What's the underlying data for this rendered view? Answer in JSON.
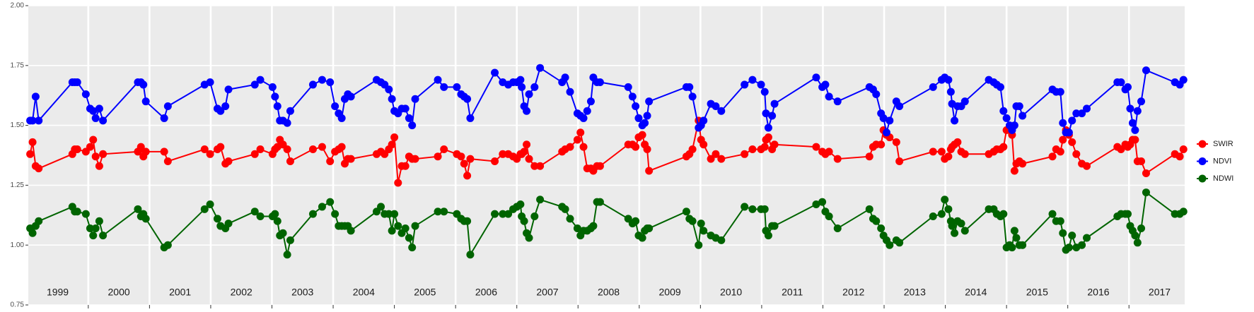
{
  "chart_data": {
    "type": "line",
    "xlim": [
      1999.02,
      2017.91
    ],
    "xticks": [
      2000,
      2001,
      2002,
      2003,
      2004,
      2005,
      2006,
      2007,
      2008,
      2009,
      2010,
      2011,
      2012,
      2013,
      2014,
      2015,
      2016,
      2017
    ],
    "ylim": [
      0.75,
      2
    ],
    "yticks": [
      {
        "value": 0.75,
        "label": "0.75"
      },
      {
        "value": 1,
        "label": "1.00"
      },
      {
        "value": 1.25,
        "label": "1.25"
      },
      {
        "value": 1.5,
        "label": "1.50"
      },
      {
        "value": 1.75,
        "label": "1.75"
      },
      {
        "value": 2,
        "label": "2.00"
      }
    ],
    "grid": true,
    "legend": "right",
    "annotations": [
      {
        "text": "1999",
        "x": 1999.5,
        "y": 0.8
      },
      {
        "text": "2000",
        "x": 2000.5,
        "y": 0.8
      },
      {
        "text": "2001",
        "x": 2001.5,
        "y": 0.8
      },
      {
        "text": "2002",
        "x": 2002.5,
        "y": 0.8
      },
      {
        "text": "2003",
        "x": 2003.5,
        "y": 0.8
      },
      {
        "text": "2004",
        "x": 2004.5,
        "y": 0.8
      },
      {
        "text": "2005",
        "x": 2005.5,
        "y": 0.8
      },
      {
        "text": "2006",
        "x": 2006.5,
        "y": 0.8
      },
      {
        "text": "2007",
        "x": 2007.5,
        "y": 0.8
      },
      {
        "text": "2008",
        "x": 2008.5,
        "y": 0.8
      },
      {
        "text": "2009",
        "x": 2009.5,
        "y": 0.8
      },
      {
        "text": "2010",
        "x": 2010.5,
        "y": 0.8
      },
      {
        "text": "2011",
        "x": 2011.5,
        "y": 0.8
      },
      {
        "text": "2012",
        "x": 2012.5,
        "y": 0.8
      },
      {
        "text": "2013",
        "x": 2013.5,
        "y": 0.8
      },
      {
        "text": "2014",
        "x": 2014.5,
        "y": 0.8
      },
      {
        "text": "2015",
        "x": 2015.5,
        "y": 0.8
      },
      {
        "text": "2016",
        "x": 2016.5,
        "y": 0.8
      },
      {
        "text": "2017",
        "x": 2017.5,
        "y": 0.8
      }
    ],
    "x": [
      1999.05,
      1999.09,
      1999.14,
      1999.19,
      1999.74,
      1999.78,
      1999.82,
      1999.96,
      2000.03,
      2000.08,
      2000.12,
      2000.18,
      2000.24,
      2000.81,
      2000.86,
      2000.9,
      2000.94,
      2001.24,
      2001.3,
      2001.9,
      2001.99,
      2002.11,
      2002.16,
      2002.24,
      2002.29,
      2002.72,
      2002.81,
      2003.01,
      2003.05,
      2003.09,
      2003.13,
      2003.18,
      2003.25,
      2003.3,
      2003.67,
      2003.82,
      2003.95,
      2004.03,
      2004.09,
      2004.14,
      2004.19,
      2004.24,
      2004.29,
      2004.71,
      2004.78,
      2004.84,
      2004.91,
      2004.96,
      2005.0,
      2005.06,
      2005.12,
      2005.18,
      2005.24,
      2005.29,
      2005.34,
      2005.71,
      2005.81,
      2006.02,
      2006.09,
      2006.14,
      2006.19,
      2006.24,
      2006.64,
      2006.77,
      2006.86,
      2006.94,
      2007.0,
      2007.06,
      2007.08,
      2007.12,
      2007.16,
      2007.2,
      2007.29,
      2007.38,
      2007.74,
      2007.79,
      2007.87,
      2007.99,
      2008.04,
      2008.09,
      2008.15,
      2008.21,
      2008.25,
      2008.31,
      2008.36,
      2008.82,
      2008.89,
      2008.94,
      2008.99,
      2009.05,
      2009.09,
      2009.13,
      2009.16,
      2009.77,
      2009.82,
      2009.87,
      2009.97,
      2010.01,
      2010.05,
      2010.17,
      2010.25,
      2010.34,
      2010.72,
      2010.85,
      2010.99,
      2011.05,
      2011.07,
      2011.11,
      2011.17,
      2011.21,
      2011.89,
      2011.99,
      2012.04,
      2012.1,
      2012.24,
      2012.76,
      2012.82,
      2012.87,
      2012.95,
      2012.99,
      2013.04,
      2013.09,
      2013.2,
      2013.25,
      2013.8,
      2013.94,
      2013.99,
      2014.05,
      2014.09,
      2014.11,
      2014.15,
      2014.2,
      2014.26,
      2014.32,
      2014.71,
      2014.79,
      2014.84,
      2014.9,
      2014.95,
      2015.0,
      2015.05,
      2015.09,
      2015.13,
      2015.16,
      2015.21,
      2015.26,
      2015.75,
      2015.81,
      2015.88,
      2015.92,
      2015.97,
      2016.02,
      2016.07,
      2016.14,
      2016.23,
      2016.31,
      2016.81,
      2016.87,
      2016.94,
      2016.98,
      2017.02,
      2017.06,
      2017.1,
      2017.14,
      2017.2,
      2017.28,
      2017.75,
      2017.83,
      2017.89
    ],
    "series": [
      {
        "name": "SWIR",
        "color": "#ff0000",
        "values": [
          1.38,
          1.43,
          1.33,
          1.32,
          1.38,
          1.4,
          1.4,
          1.39,
          1.41,
          1.44,
          1.37,
          1.33,
          1.38,
          1.39,
          1.41,
          1.37,
          1.39,
          1.39,
          1.35,
          1.4,
          1.38,
          1.4,
          1.41,
          1.34,
          1.35,
          1.38,
          1.4,
          1.38,
          1.4,
          1.41,
          1.44,
          1.42,
          1.4,
          1.35,
          1.4,
          1.41,
          1.35,
          1.39,
          1.4,
          1.41,
          1.34,
          1.36,
          1.36,
          1.38,
          1.39,
          1.38,
          1.4,
          1.42,
          1.45,
          1.26,
          1.33,
          1.33,
          1.37,
          1.36,
          1.36,
          1.37,
          1.4,
          1.38,
          1.37,
          1.34,
          1.29,
          1.36,
          1.35,
          1.38,
          1.38,
          1.37,
          1.36,
          1.38,
          1.38,
          1.39,
          1.42,
          1.36,
          1.33,
          1.33,
          1.39,
          1.4,
          1.41,
          1.44,
          1.47,
          1.41,
          1.32,
          1.32,
          1.31,
          1.33,
          1.33,
          1.42,
          1.42,
          1.41,
          1.45,
          1.46,
          1.42,
          1.4,
          1.31,
          1.37,
          1.38,
          1.4,
          1.52,
          1.44,
          1.42,
          1.36,
          1.38,
          1.36,
          1.38,
          1.4,
          1.4,
          1.41,
          1.44,
          1.45,
          1.4,
          1.42,
          1.41,
          1.39,
          1.38,
          1.39,
          1.36,
          1.37,
          1.41,
          1.42,
          1.42,
          1.48,
          1.46,
          1.45,
          1.43,
          1.35,
          1.39,
          1.39,
          1.36,
          1.37,
          1.4,
          1.41,
          1.42,
          1.43,
          1.39,
          1.38,
          1.38,
          1.39,
          1.4,
          1.4,
          1.41,
          1.48,
          1.48,
          1.46,
          1.31,
          1.34,
          1.35,
          1.34,
          1.37,
          1.4,
          1.39,
          1.44,
          1.48,
          1.46,
          1.43,
          1.38,
          1.34,
          1.33,
          1.41,
          1.4,
          1.42,
          1.41,
          1.42,
          1.44,
          1.44,
          1.35,
          1.35,
          1.3,
          1.38,
          1.37,
          1.4
        ]
      },
      {
        "name": "NDVI",
        "color": "#0000ff",
        "values": [
          1.52,
          1.52,
          1.62,
          1.52,
          1.68,
          1.68,
          1.68,
          1.63,
          1.57,
          1.56,
          1.53,
          1.57,
          1.52,
          1.68,
          1.68,
          1.67,
          1.6,
          1.53,
          1.58,
          1.67,
          1.68,
          1.57,
          1.56,
          1.58,
          1.65,
          1.67,
          1.69,
          1.66,
          1.62,
          1.58,
          1.52,
          1.52,
          1.51,
          1.56,
          1.67,
          1.69,
          1.68,
          1.58,
          1.55,
          1.53,
          1.61,
          1.63,
          1.62,
          1.69,
          1.68,
          1.67,
          1.65,
          1.61,
          1.56,
          1.55,
          1.57,
          1.57,
          1.53,
          1.5,
          1.61,
          1.69,
          1.66,
          1.66,
          1.63,
          1.62,
          1.61,
          1.53,
          1.72,
          1.68,
          1.67,
          1.68,
          1.68,
          1.69,
          1.66,
          1.58,
          1.56,
          1.63,
          1.66,
          1.74,
          1.68,
          1.7,
          1.64,
          1.55,
          1.54,
          1.53,
          1.56,
          1.6,
          1.7,
          1.68,
          1.68,
          1.66,
          1.62,
          1.58,
          1.53,
          1.5,
          1.51,
          1.54,
          1.6,
          1.66,
          1.66,
          1.62,
          1.49,
          1.5,
          1.52,
          1.59,
          1.58,
          1.56,
          1.67,
          1.69,
          1.67,
          1.64,
          1.55,
          1.49,
          1.54,
          1.59,
          1.7,
          1.66,
          1.67,
          1.62,
          1.6,
          1.66,
          1.65,
          1.63,
          1.55,
          1.53,
          1.47,
          1.52,
          1.6,
          1.58,
          1.66,
          1.69,
          1.7,
          1.69,
          1.64,
          1.59,
          1.52,
          1.58,
          1.58,
          1.6,
          1.69,
          1.68,
          1.67,
          1.66,
          1.56,
          1.53,
          1.5,
          1.48,
          1.5,
          1.58,
          1.58,
          1.54,
          1.65,
          1.64,
          1.64,
          1.51,
          1.47,
          1.47,
          1.52,
          1.55,
          1.55,
          1.57,
          1.68,
          1.68,
          1.65,
          1.66,
          1.57,
          1.51,
          1.48,
          1.56,
          1.6,
          1.73,
          1.68,
          1.67,
          1.69
        ]
      },
      {
        "name": "NDWI",
        "color": "#006400",
        "values": [
          1.07,
          1.05,
          1.08,
          1.1,
          1.16,
          1.14,
          1.14,
          1.13,
          1.07,
          1.04,
          1.07,
          1.1,
          1.04,
          1.15,
          1.12,
          1.13,
          1.11,
          0.99,
          1.0,
          1.15,
          1.17,
          1.11,
          1.08,
          1.07,
          1.09,
          1.14,
          1.12,
          1.12,
          1.13,
          1.1,
          1.04,
          1.05,
          0.96,
          1.02,
          1.13,
          1.16,
          1.18,
          1.13,
          1.08,
          1.08,
          1.08,
          1.08,
          1.06,
          1.14,
          1.16,
          1.13,
          1.13,
          1.06,
          1.13,
          1.08,
          1.05,
          1.07,
          1.03,
          0.99,
          1.08,
          1.14,
          1.14,
          1.13,
          1.11,
          1.1,
          1.1,
          0.96,
          1.13,
          1.13,
          1.13,
          1.15,
          1.16,
          1.17,
          1.12,
          1.1,
          1.05,
          1.03,
          1.12,
          1.19,
          1.16,
          1.15,
          1.11,
          1.07,
          1.04,
          1.06,
          1.06,
          1.07,
          1.08,
          1.18,
          1.18,
          1.11,
          1.09,
          1.1,
          1.04,
          1.03,
          1.06,
          1.07,
          1.07,
          1.14,
          1.11,
          1.1,
          1.0,
          1.09,
          1.06,
          1.04,
          1.03,
          1.02,
          1.16,
          1.15,
          1.15,
          1.15,
          1.06,
          1.04,
          1.08,
          1.08,
          1.17,
          1.18,
          1.14,
          1.12,
          1.07,
          1.15,
          1.11,
          1.1,
          1.07,
          1.04,
          1.02,
          1.0,
          1.02,
          1.01,
          1.12,
          1.13,
          1.19,
          1.15,
          1.1,
          1.08,
          1.05,
          1.1,
          1.09,
          1.06,
          1.15,
          1.15,
          1.13,
          1.12,
          1.13,
          0.99,
          1.0,
          0.99,
          1.06,
          1.03,
          1.0,
          1.0,
          1.13,
          1.1,
          1.1,
          1.05,
          0.98,
          0.99,
          1.04,
          0.99,
          1.0,
          1.03,
          1.12,
          1.13,
          1.13,
          1.13,
          1.08,
          1.06,
          1.04,
          1.01,
          1.07,
          1.22,
          1.13,
          1.13,
          1.14
        ]
      }
    ]
  }
}
